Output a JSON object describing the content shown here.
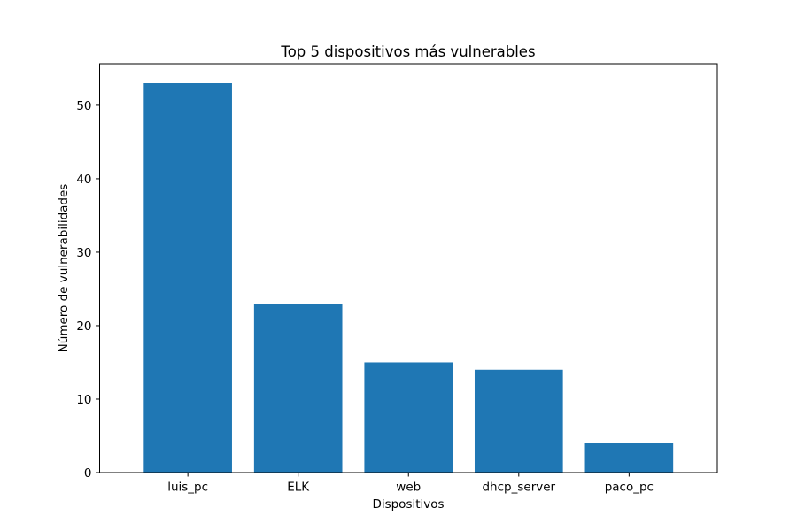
{
  "chart_data": {
    "type": "bar",
    "title": "Top 5 dispositivos más vulnerables",
    "xlabel": "Dispositivos",
    "ylabel": "Número de vulnerabilidades",
    "categories": [
      "luis_pc",
      "ELK",
      "web",
      "dhcp_server",
      "paco_pc"
    ],
    "values": [
      53,
      23,
      15,
      14,
      4
    ],
    "ylim": [
      0,
      55.65
    ],
    "yticks": [
      0,
      10,
      20,
      30,
      40,
      50
    ],
    "grid": false,
    "bar_color": "#1f77b4"
  }
}
